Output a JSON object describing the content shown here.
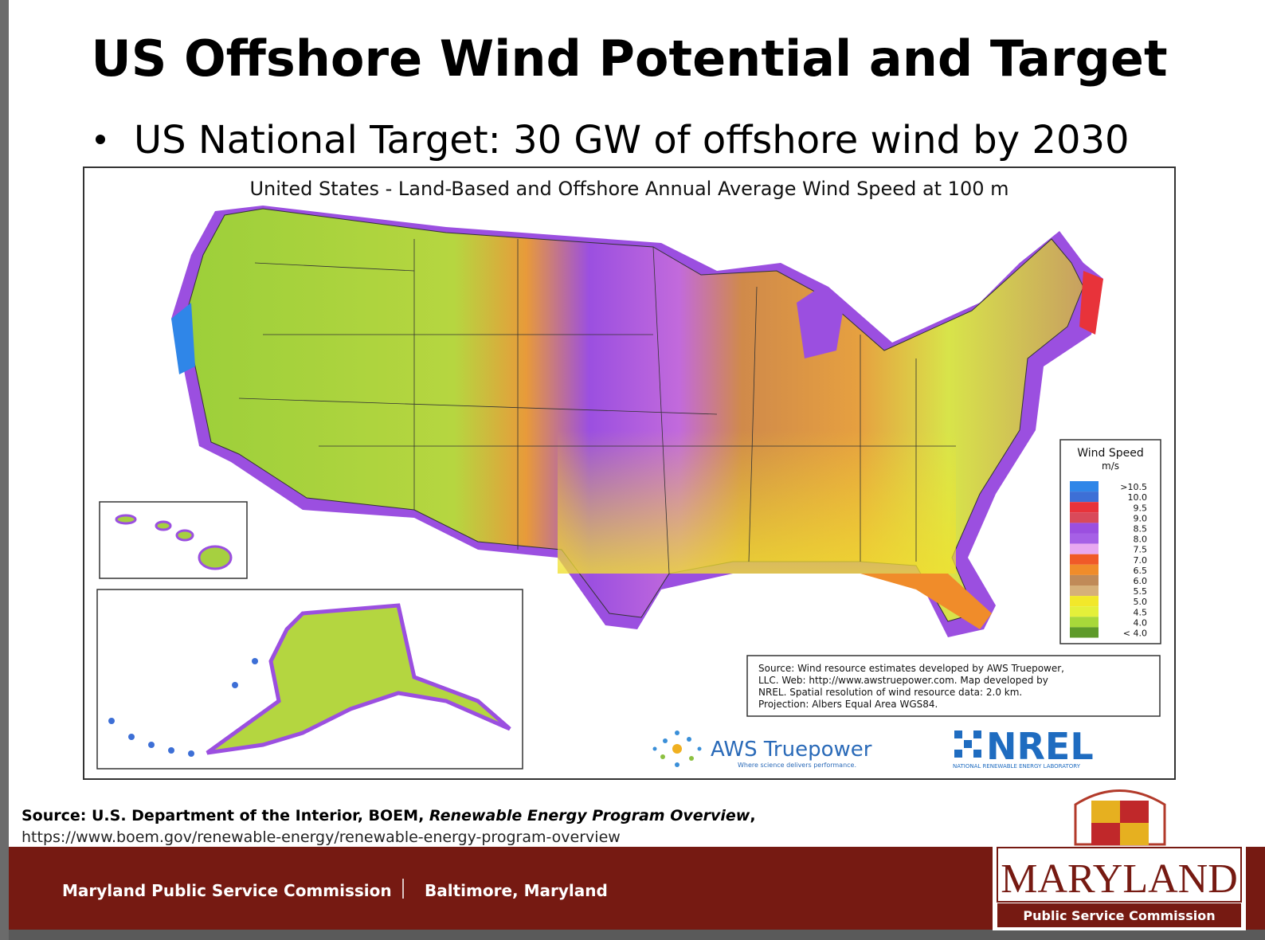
{
  "header": {
    "title": "US Offshore Wind Potential and Target",
    "bullet": "US National Target: 30 GW of offshore wind by 2030"
  },
  "map": {
    "title": "United States - Land-Based and Offshore Annual Average Wind Speed at 100 m",
    "legend": {
      "title": "Wind Speed",
      "unit": "m/s",
      "labels": [
        ">10.5",
        "10.0",
        "9.5",
        "9.0",
        "8.5",
        "8.0",
        "7.5",
        "7.0",
        "6.5",
        "6.0",
        "5.5",
        "5.0",
        "4.5",
        "4.0",
        "< 4.0"
      ],
      "colors": [
        "#2f86e8",
        "#3d6fd6",
        "#e8333a",
        "#d94a5a",
        "#9b4fe0",
        "#a660e6",
        "#e8a8f0",
        "#f05a28",
        "#f08c2a",
        "#c08a58",
        "#d6b07a",
        "#f2e82a",
        "#e4f03a",
        "#a8d83a",
        "#5e9a2a"
      ]
    },
    "source_note": [
      "Source: Wind resource estimates developed by AWS Truepower,",
      "LLC.  Web: http://www.awstruepower.com. Map developed by",
      "NREL.  Spatial resolution of wind resource data: 2.0 km.",
      "Projection: Albers Equal Area WGS84."
    ],
    "aws_name": "AWS Truepower",
    "aws_tagline": "Where science delivers performance.",
    "nrel_name": "NREL",
    "nrel_tagline": "NATIONAL RENEWABLE ENERGY LABORATORY"
  },
  "source": {
    "prefix": "Source: U.S. Department of the Interior, BOEM, ",
    "title": "Renewable Energy Program Overview",
    "suffix": ",",
    "url": "https://www.boem.gov/renewable-energy/renewable-energy-program-overview"
  },
  "footer": {
    "organization": "Maryland Public Service Commission",
    "location": "Baltimore, Maryland",
    "logo_name": "MARYLAND",
    "logo_sub": "Public Service Commission"
  }
}
